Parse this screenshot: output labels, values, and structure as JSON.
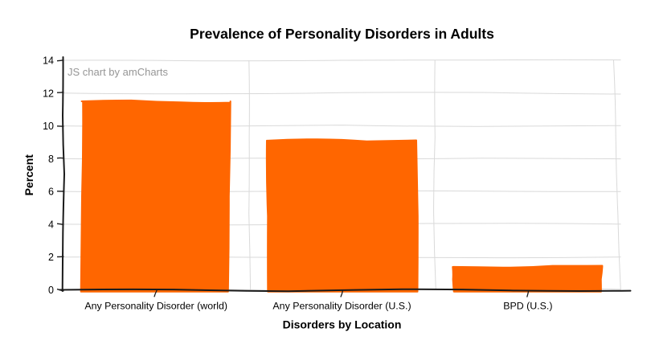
{
  "chart_data": {
    "type": "bar",
    "title": "Prevalence of Personality Disorders in Adults",
    "xlabel": "Disorders by Location",
    "ylabel": "Percent",
    "categories": [
      "Any Personality Disorder (world)",
      "Any Personality Disorder (U.S.)",
      "BPD (U.S.)"
    ],
    "values": [
      11.5,
      9.1,
      1.4
    ],
    "ylim": [
      0,
      14
    ],
    "ytick_step": 2,
    "grid": true,
    "legend": false,
    "style": "hand-drawn",
    "watermark": "JS chart by amCharts"
  },
  "colors": {
    "bar": "#ff6600",
    "grid": "#d9d9d9",
    "axis": "#1a1a1a",
    "text": "#000000",
    "watermark": "#969696",
    "background": "#ffffff"
  }
}
